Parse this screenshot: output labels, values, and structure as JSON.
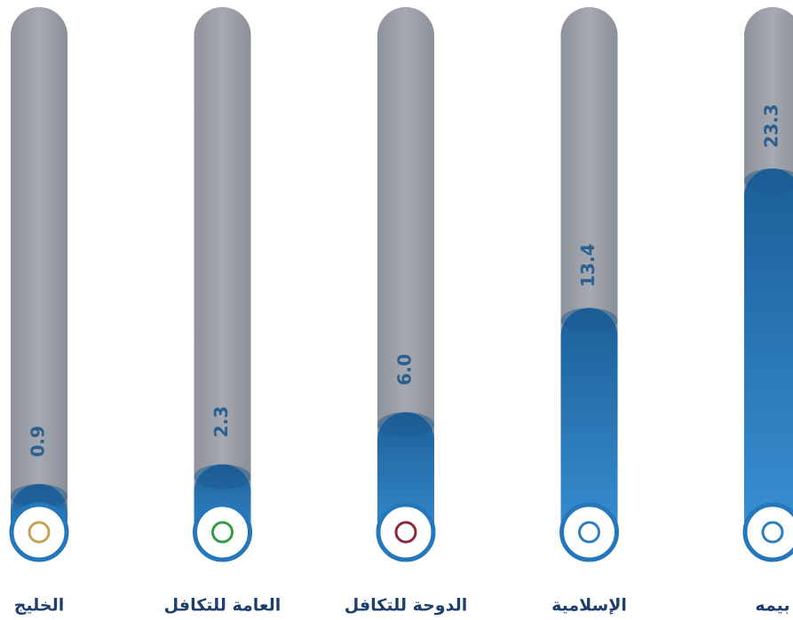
{
  "chart_data": {
    "type": "bar",
    "categories": [
      "الخليج",
      "العامة للتكافل",
      "الدوحة للتكافل",
      "الإسلامية",
      "بيمه"
    ],
    "values": [
      0.9,
      2.3,
      6.0,
      13.4,
      23.3
    ],
    "value_labels": [
      "0.9",
      "2.3",
      "6.0",
      "13.4",
      "23.3"
    ],
    "color": "#2477bb"
  }
}
